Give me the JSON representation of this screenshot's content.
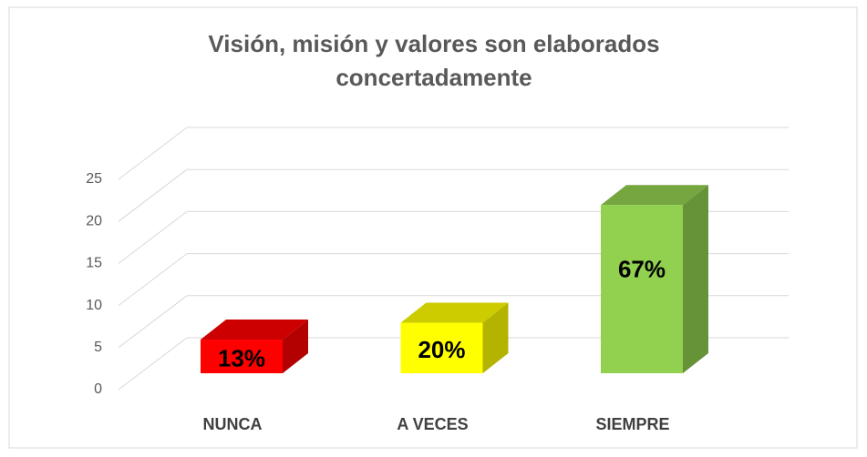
{
  "chart_data": {
    "type": "bar3d",
    "title": "Visión, misión y valores son elaborados concertadamente",
    "categories": [
      "NUNCA",
      "A VECES",
      "SIEMPRE"
    ],
    "values": [
      4,
      6,
      20
    ],
    "value_labels": [
      "13%",
      "20%",
      "67%"
    ],
    "colors": [
      "#ff0000",
      "#ffff00",
      "#92d050"
    ],
    "ylim": [
      0,
      25
    ],
    "yticks": [
      0,
      5,
      10,
      15,
      20,
      25
    ],
    "grid": true
  }
}
